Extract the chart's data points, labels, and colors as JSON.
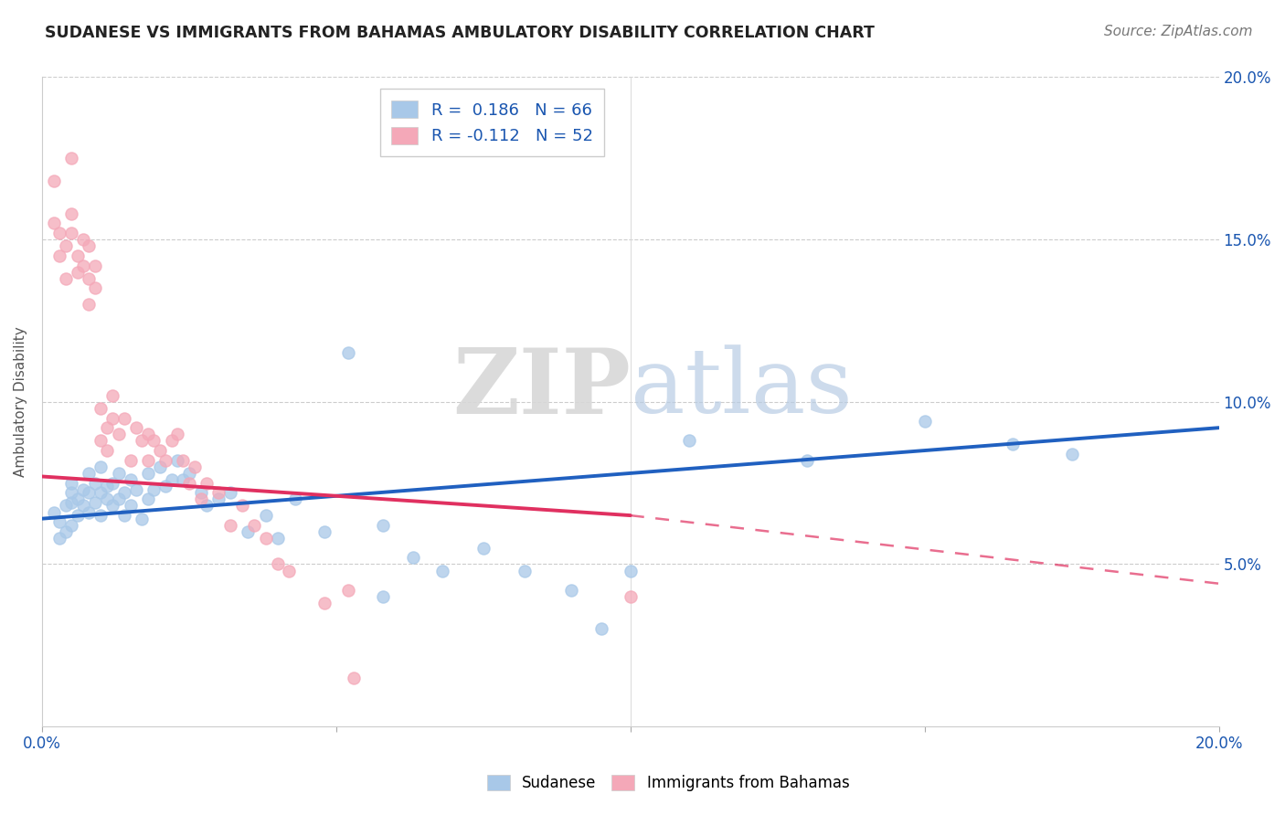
{
  "title": "SUDANESE VS IMMIGRANTS FROM BAHAMAS AMBULATORY DISABILITY CORRELATION CHART",
  "source_text": "Source: ZipAtlas.com",
  "ylabel": "Ambulatory Disability",
  "xmin": 0.0,
  "xmax": 0.2,
  "ymin": 0.0,
  "ymax": 0.2,
  "yticks": [
    0.05,
    0.1,
    0.15,
    0.2
  ],
  "ytick_labels": [
    "5.0%",
    "10.0%",
    "15.0%",
    "20.0%"
  ],
  "xticks": [
    0.0,
    0.05,
    0.1,
    0.15,
    0.2
  ],
  "blue_R": 0.186,
  "blue_N": 66,
  "pink_R": -0.112,
  "pink_N": 52,
  "blue_color": "#a8c8e8",
  "pink_color": "#f4a8b8",
  "blue_line_color": "#2060c0",
  "pink_line_color": "#e03060",
  "watermark_zip": "ZIP",
  "watermark_atlas": "atlas",
  "blue_line_start_x": 0.0,
  "blue_line_start_y": 0.064,
  "blue_line_end_x": 0.2,
  "blue_line_end_y": 0.092,
  "pink_line_start_x": 0.0,
  "pink_line_start_y": 0.077,
  "pink_line_solid_end_x": 0.1,
  "pink_line_solid_end_y": 0.065,
  "pink_line_dashed_end_x": 0.2,
  "pink_line_dashed_end_y": 0.044,
  "blue_scatter_x": [
    0.002,
    0.003,
    0.003,
    0.004,
    0.004,
    0.005,
    0.005,
    0.005,
    0.005,
    0.006,
    0.006,
    0.007,
    0.007,
    0.008,
    0.008,
    0.008,
    0.009,
    0.009,
    0.01,
    0.01,
    0.01,
    0.011,
    0.011,
    0.012,
    0.012,
    0.013,
    0.013,
    0.014,
    0.014,
    0.015,
    0.015,
    0.016,
    0.017,
    0.018,
    0.018,
    0.019,
    0.02,
    0.021,
    0.022,
    0.023,
    0.024,
    0.025,
    0.027,
    0.028,
    0.03,
    0.032,
    0.035,
    0.038,
    0.04,
    0.043,
    0.048,
    0.052,
    0.058,
    0.063,
    0.068,
    0.075,
    0.082,
    0.09,
    0.1,
    0.11,
    0.13,
    0.15,
    0.165,
    0.175,
    0.058,
    0.095
  ],
  "blue_scatter_y": [
    0.066,
    0.058,
    0.063,
    0.06,
    0.068,
    0.072,
    0.069,
    0.062,
    0.075,
    0.07,
    0.065,
    0.068,
    0.073,
    0.072,
    0.066,
    0.078,
    0.069,
    0.075,
    0.072,
    0.065,
    0.08,
    0.07,
    0.074,
    0.068,
    0.075,
    0.07,
    0.078,
    0.065,
    0.072,
    0.068,
    0.076,
    0.073,
    0.064,
    0.07,
    0.078,
    0.073,
    0.08,
    0.074,
    0.076,
    0.082,
    0.076,
    0.078,
    0.072,
    0.068,
    0.07,
    0.072,
    0.06,
    0.065,
    0.058,
    0.07,
    0.06,
    0.115,
    0.062,
    0.052,
    0.048,
    0.055,
    0.048,
    0.042,
    0.048,
    0.088,
    0.082,
    0.094,
    0.087,
    0.084,
    0.04,
    0.03
  ],
  "pink_scatter_x": [
    0.002,
    0.002,
    0.003,
    0.003,
    0.004,
    0.004,
    0.005,
    0.005,
    0.005,
    0.006,
    0.006,
    0.007,
    0.007,
    0.008,
    0.008,
    0.008,
    0.009,
    0.009,
    0.01,
    0.01,
    0.011,
    0.011,
    0.012,
    0.012,
    0.013,
    0.014,
    0.015,
    0.016,
    0.017,
    0.018,
    0.018,
    0.019,
    0.02,
    0.021,
    0.022,
    0.023,
    0.024,
    0.025,
    0.026,
    0.027,
    0.028,
    0.03,
    0.032,
    0.034,
    0.036,
    0.038,
    0.04,
    0.042,
    0.048,
    0.052,
    0.053,
    0.1
  ],
  "pink_scatter_y": [
    0.168,
    0.155,
    0.152,
    0.145,
    0.148,
    0.138,
    0.175,
    0.158,
    0.152,
    0.145,
    0.14,
    0.15,
    0.142,
    0.148,
    0.138,
    0.13,
    0.142,
    0.135,
    0.098,
    0.088,
    0.092,
    0.085,
    0.102,
    0.095,
    0.09,
    0.095,
    0.082,
    0.092,
    0.088,
    0.082,
    0.09,
    0.088,
    0.085,
    0.082,
    0.088,
    0.09,
    0.082,
    0.075,
    0.08,
    0.07,
    0.075,
    0.072,
    0.062,
    0.068,
    0.062,
    0.058,
    0.05,
    0.048,
    0.038,
    0.042,
    0.015,
    0.04
  ]
}
